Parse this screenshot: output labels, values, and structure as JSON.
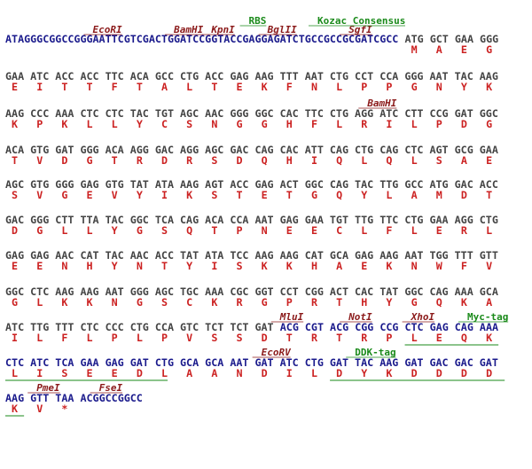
{
  "lines": [
    {
      "labels": [
        {
          "text": "EcoRI",
          "color": "#8b1a1a"
        },
        {
          "text": "BamHI",
          "color": "#8b1a1a"
        },
        {
          "text": "KpnI",
          "color": "#8b1a1a"
        },
        {
          "text": "BglII",
          "color": "#8b1a1a"
        },
        {
          "text": "SgfI",
          "color": "#8b1a1a"
        },
        {
          "text": "RBS",
          "color": "#1a8a1a"
        },
        {
          "text": "Kozac Consensus",
          "color": "#1a8a1a"
        }
      ],
      "codons": [
        {
          "seq": "ATAGGGCGGCCGGGAATTCGTCGACTGGATCCGGTACCGAGGAGATCTGCCGCCGCGATCGCC",
          "color": "#1a1a8c"
        },
        {
          "seq": "ATG",
          "color": "#444444"
        },
        {
          "seq": "GCT",
          "color": "#444444"
        },
        {
          "seq": "GAA",
          "color": "#444444"
        },
        {
          "seq": "GGG",
          "color": "#444444"
        }
      ],
      "aa": [
        null,
        "M",
        "A",
        "E",
        "G"
      ],
      "aa_color": "#cc2222"
    },
    {
      "labels": [],
      "codons": [
        {
          "seq": "GAA ATC ACC ACC TTC ACA GCC CTG ACC GAG AAG TTT AAT CTG CCT CCA GGG AAT TAC AAG",
          "color": "#444444"
        }
      ],
      "aa": [
        "E",
        "I",
        "T",
        "T",
        "F",
        "T",
        "A",
        "L",
        "T",
        "E",
        "K",
        "F",
        "N",
        "L",
        "P",
        "P",
        "G",
        "N",
        "Y",
        "K"
      ],
      "aa_color": "#cc2222"
    },
    {
      "labels": [
        {
          "text": "BamHI",
          "color": "#8b1a1a"
        }
      ],
      "codons": [
        {
          "seq": "AAG CCC AAA CTC CTC TAC TGT AGC AAC GGG GGC CAC TTC CTG AGG ATC CTT CCG GAT GGC",
          "color": "#444444"
        }
      ],
      "aa": [
        "K",
        "P",
        "K",
        "L",
        "L",
        "Y",
        "C",
        "S",
        "N",
        "G",
        "G",
        "H",
        "F",
        "L",
        "R",
        "I",
        "L",
        "P",
        "D",
        "G"
      ],
      "aa_color": "#cc2222"
    },
    {
      "labels": [],
      "codons": [
        {
          "seq": "ACA GTG GAT GGG ACA AGG GAC AGG AGC GAC CAG CAC ATT CAG CTG CAG CTC AGT GCG GAA",
          "color": "#444444"
        }
      ],
      "aa": [
        "T",
        "V",
        "D",
        "G",
        "T",
        "R",
        "D",
        "R",
        "S",
        "D",
        "Q",
        "H",
        "I",
        "Q",
        "L",
        "Q",
        "L",
        "S",
        "A",
        "E"
      ],
      "aa_color": "#cc2222"
    },
    {
      "labels": [],
      "codons": [
        {
          "seq": "AGC GTG GGG GAG GTG TAT ATA AAG AGT ACC GAG ACT GGC CAG TAC TTG GCC ATG GAC ACC",
          "color": "#444444"
        }
      ],
      "aa": [
        "S",
        "V",
        "G",
        "E",
        "V",
        "Y",
        "I",
        "K",
        "S",
        "T",
        "E",
        "T",
        "G",
        "Q",
        "Y",
        "L",
        "A",
        "M",
        "D",
        "T"
      ],
      "aa_color": "#cc2222"
    },
    {
      "labels": [],
      "codons": [
        {
          "seq": "GAC GGG CTT TTA TAC GGC TCA CAG ACA CCA AAT GAG GAA TGT TTG TTC CTG GAA AGG CTG",
          "color": "#444444"
        }
      ],
      "aa": [
        "D",
        "G",
        "L",
        "L",
        "Y",
        "G",
        "S",
        "Q",
        "T",
        "P",
        "N",
        "E",
        "E",
        "C",
        "L",
        "F",
        "L",
        "E",
        "R",
        "L"
      ],
      "aa_color": "#cc2222"
    },
    {
      "labels": [],
      "codons": [
        {
          "seq": "GAG GAG AAC CAT TAC AAC ACC TAT ATA TCC AAG AAG CAT GCA GAG AAG AAT TGG TTT GTT",
          "color": "#444444"
        }
      ],
      "aa": [
        "E",
        "E",
        "N",
        "H",
        "Y",
        "N",
        "T",
        "Y",
        "I",
        "S",
        "K",
        "K",
        "H",
        "A",
        "E",
        "K",
        "N",
        "W",
        "F",
        "V"
      ],
      "aa_color": "#cc2222"
    },
    {
      "labels": [],
      "codons": [
        {
          "seq": "GGC CTC AAG AAG AAT GGG AGC TGC AAA CGC GGT CCT CGG ACT CAC TAT GGC CAG AAA GCA",
          "color": "#444444"
        }
      ],
      "aa": [
        "G",
        "L",
        "K",
        "K",
        "N",
        "G",
        "S",
        "C",
        "K",
        "R",
        "G",
        "P",
        "R",
        "T",
        "H",
        "Y",
        "G",
        "Q",
        "K",
        "A"
      ],
      "aa_color": "#cc2222"
    },
    {
      "labels": [
        {
          "text": "MluI",
          "color": "#8b1a1a"
        },
        {
          "text": "NotI",
          "color": "#8b1a1a"
        },
        {
          "text": "XhoI",
          "color": "#8b1a1a"
        },
        {
          "text": "Myc-tag",
          "color": "#1a8a1a"
        }
      ],
      "codons": [
        {
          "seq": "ATC TTG TTT CTC CCC CTG CCA GTC TCT TCT GAT",
          "color": "#444444"
        },
        {
          "seq": "ACG CGT ACG CGG CCG CTC GAG CAG AAA",
          "color": "#1a1a8c"
        }
      ],
      "aa": [
        "I",
        "L",
        "F",
        "L",
        "P",
        "L",
        "P",
        "V",
        "S",
        "S",
        "D",
        "T",
        "R",
        "T",
        "R",
        "P",
        "L",
        "E",
        "Q",
        "K"
      ],
      "aa_color": "#cc2222"
    },
    {
      "labels": [
        {
          "text": "EcoRV",
          "color": "#8b1a1a"
        },
        {
          "text": "DDK-tag",
          "color": "#1a8a1a"
        }
      ],
      "codons": [
        {
          "seq": "CTC ATC TCA GAA GAG GAT CTG GCA GCA AAT GAT ATC CTG GAT TAC AAG GAT GAC GAC GAT",
          "color": "#1a1a8c"
        }
      ],
      "aa": [
        "L",
        "I",
        "S",
        "E",
        "E",
        "D",
        "L",
        "A",
        "A",
        "N",
        "D",
        "I",
        "L",
        "D",
        "Y",
        "K",
        "D",
        "D",
        "D",
        "D"
      ],
      "aa_color": "#cc2222"
    },
    {
      "labels": [
        {
          "text": "PmeI",
          "color": "#8b1a1a"
        },
        {
          "text": "FseI",
          "color": "#8b1a1a"
        }
      ],
      "codons": [
        {
          "seq": "AAG GTT TAA",
          "color": "#1a1a8c"
        },
        {
          "seq": "ACGGCCGGCC",
          "color": "#1a1a8c"
        }
      ],
      "aa": [
        "K",
        "V",
        "*"
      ],
      "aa_color": "#cc2222"
    }
  ]
}
